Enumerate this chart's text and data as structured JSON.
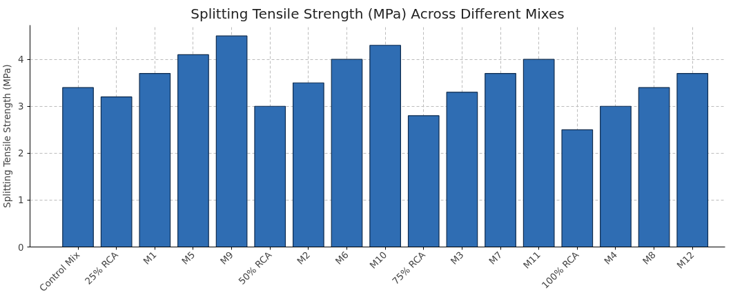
{
  "chart_data": {
    "type": "bar",
    "title": "Splitting Tensile Strength (MPa) Across Different Mixes",
    "ylabel": "Splitting Tensile Strength (MPa)",
    "categories": [
      "Control Mix",
      "25% RCA",
      "M1",
      "M5",
      "M9",
      "50% RCA",
      "M2",
      "M6",
      "M10",
      "75% RCA",
      "M3",
      "M7",
      "M11",
      "100% RCA",
      "M4",
      "M8",
      "M12"
    ],
    "values": [
      3.4,
      3.2,
      3.7,
      4.1,
      4.5,
      3.0,
      3.5,
      4.0,
      4.3,
      2.8,
      3.3,
      3.7,
      4.0,
      2.5,
      3.0,
      3.4,
      3.7
    ],
    "color": "#2f6db3",
    "ylim": [
      0,
      4.73
    ],
    "yticks": [
      0,
      1,
      2,
      3,
      4
    ],
    "grid": true
  }
}
